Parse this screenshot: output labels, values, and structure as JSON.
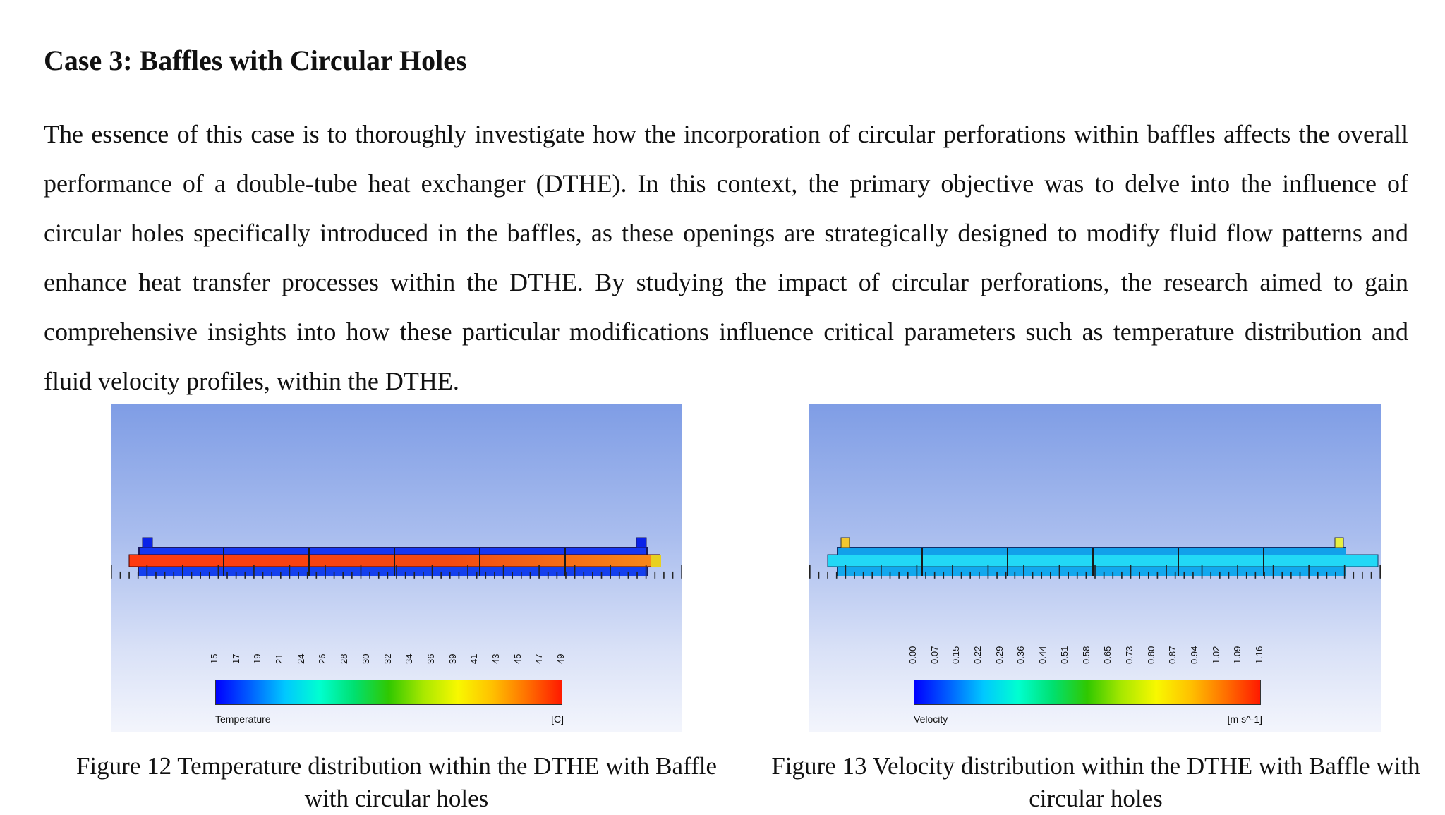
{
  "section": {
    "heading": "Case 3: Baffles with Circular Holes",
    "paragraph": "The essence of this case is to thoroughly investigate how the incorporation of circular perforations within baffles affects the overall performance of a double-tube heat exchanger (DTHE). In this context, the primary objective was to delve into the influence of circular holes specifically introduced in the baffles, as these openings are strategically designed to modify fluid flow patterns and enhance heat transfer processes within the DTHE. By studying the impact of circular perforations, the research aimed to gain comprehensive insights into how these particular modifications influence critical parameters such as temperature distribution and fluid velocity profiles, within the DTHE."
  },
  "figures": [
    {
      "caption": "Figure 12 Temperature distribution within the DTHE with Baffle with circular holes",
      "legend_title": "Temperature",
      "legend_unit": "[C]",
      "legend_ticks": [
        "15",
        "17",
        "19",
        "21",
        "24",
        "26",
        "28",
        "30",
        "32",
        "34",
        "36",
        "39",
        "41",
        "43",
        "45",
        "47",
        "49"
      ],
      "inner_tube_color": "#ee3a14",
      "shell_color": "#1433f0"
    },
    {
      "caption": "Figure 13 Velocity distribution within the DTHE with Baffle with circular holes",
      "legend_title": "Velocity",
      "legend_unit": "[m s^-1]",
      "legend_ticks": [
        "0.00",
        "0.07",
        "0.15",
        "0.22",
        "0.29",
        "0.36",
        "0.44",
        "0.51",
        "0.58",
        "0.65",
        "0.73",
        "0.80",
        "0.87",
        "0.94",
        "1.02",
        "1.09",
        "1.16"
      ],
      "inner_tube_color": "#19d6f5",
      "shell_color": "#16b8f0"
    }
  ],
  "colors": {
    "colormap": [
      "#0000ff",
      "#0060ff",
      "#00c8ff",
      "#00ffd0",
      "#00e070",
      "#30c800",
      "#a8e800",
      "#f8f800",
      "#ffc000",
      "#ff7000",
      "#ff1a00"
    ]
  }
}
